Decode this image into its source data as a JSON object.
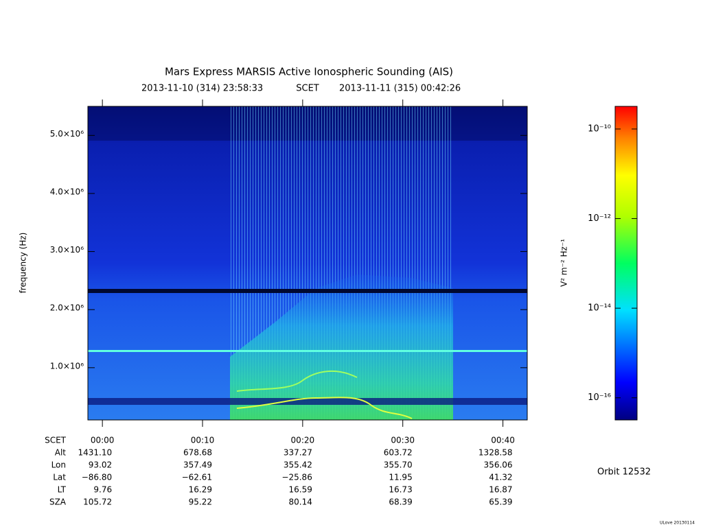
{
  "chart_data": {
    "type": "spectrogram",
    "title": "Mars Express MARSIS Active Ionospheric Sounding (AIS)",
    "start_time": "2013-11-10 (314) 23:58:33",
    "time_system": "SCET",
    "end_time": "2013-11-11 (315) 00:42:26",
    "ylabel": "frequency (Hz)",
    "xlim": [
      -1.45,
      42.43
    ],
    "xticks": [
      {
        "value": 0,
        "label": "00:00"
      },
      {
        "value": 10,
        "label": "00:10"
      },
      {
        "value": 20,
        "label": "00:20"
      },
      {
        "value": 30,
        "label": "00:30"
      },
      {
        "value": 40,
        "label": "00:40"
      }
    ],
    "ylim": [
      100000,
      5500000
    ],
    "yticks": [
      {
        "value": 1000000,
        "label": "1.0×10⁶"
      },
      {
        "value": 2000000,
        "label": "2.0×10⁶"
      },
      {
        "value": 3000000,
        "label": "3.0×10⁶"
      },
      {
        "value": 4000000,
        "label": "4.0×10⁶"
      },
      {
        "value": 5000000,
        "label": "5.0×10⁶"
      }
    ],
    "colorbar": {
      "label": "V² m⁻² Hz⁻¹",
      "log": true,
      "lim": [
        3.2e-17,
        3.2e-10
      ],
      "ticks": [
        {
          "value": 1e-10,
          "label": "10⁻¹⁰"
        },
        {
          "value": 1e-12,
          "label": "10⁻¹²"
        },
        {
          "value": 1e-14,
          "label": "10⁻¹⁴"
        },
        {
          "value": 1e-16,
          "label": "10⁻¹⁶"
        }
      ]
    },
    "ephemeris": {
      "time_label": "SCET",
      "rows": [
        {
          "label": "Alt",
          "values": [
            "1431.10",
            "678.68",
            "337.27",
            "603.72",
            "1328.58"
          ]
        },
        {
          "label": "Lon",
          "values": [
            "93.02",
            "357.49",
            "355.42",
            "355.70",
            "356.06"
          ]
        },
        {
          "label": "Lat",
          "values": [
            "−86.80",
            "−62.61",
            "−25.86",
            "11.95",
            "41.32"
          ]
        },
        {
          "label": "LT",
          "values": [
            "9.76",
            "16.29",
            "16.59",
            "16.73",
            "16.87"
          ]
        },
        {
          "label": "SZA",
          "values": [
            "105.72",
            "95.22",
            "80.14",
            "68.39",
            "65.39"
          ]
        }
      ]
    },
    "orbit": "Orbit 12532",
    "credit": "ULove 20130114"
  }
}
